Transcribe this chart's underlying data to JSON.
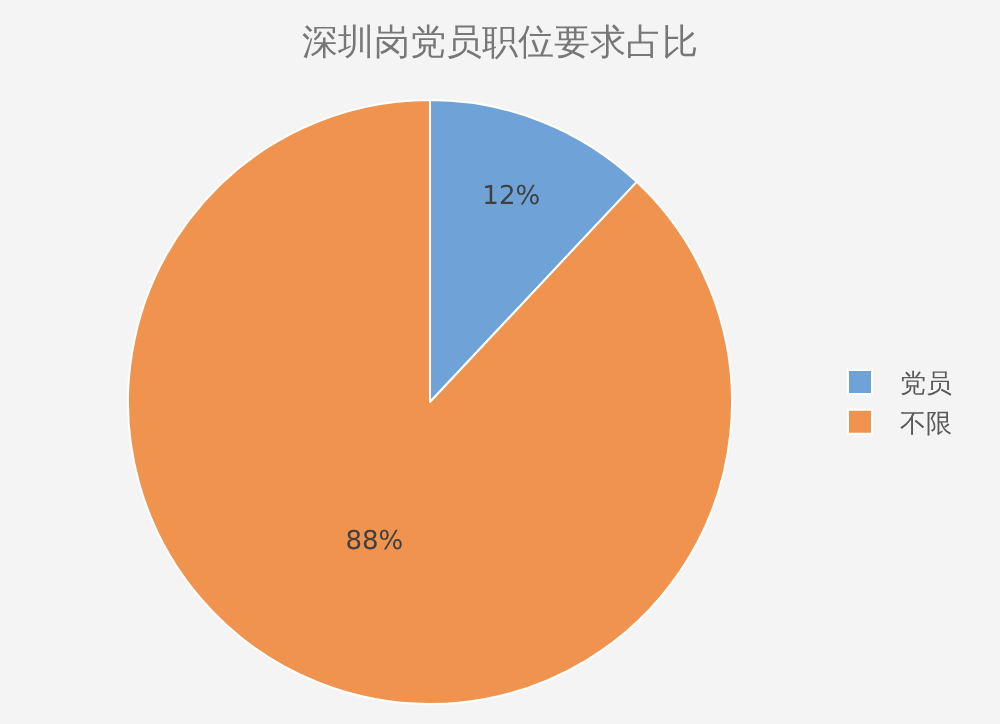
{
  "chart_data": {
    "type": "pie",
    "title": "深圳岗党员职位要求占比",
    "categories": [
      "党员",
      "不限"
    ],
    "values": [
      12,
      88
    ],
    "colors": [
      "#6fa3d8",
      "#f0934f"
    ],
    "value_labels": [
      "12%",
      "88%"
    ],
    "legend": "right"
  }
}
